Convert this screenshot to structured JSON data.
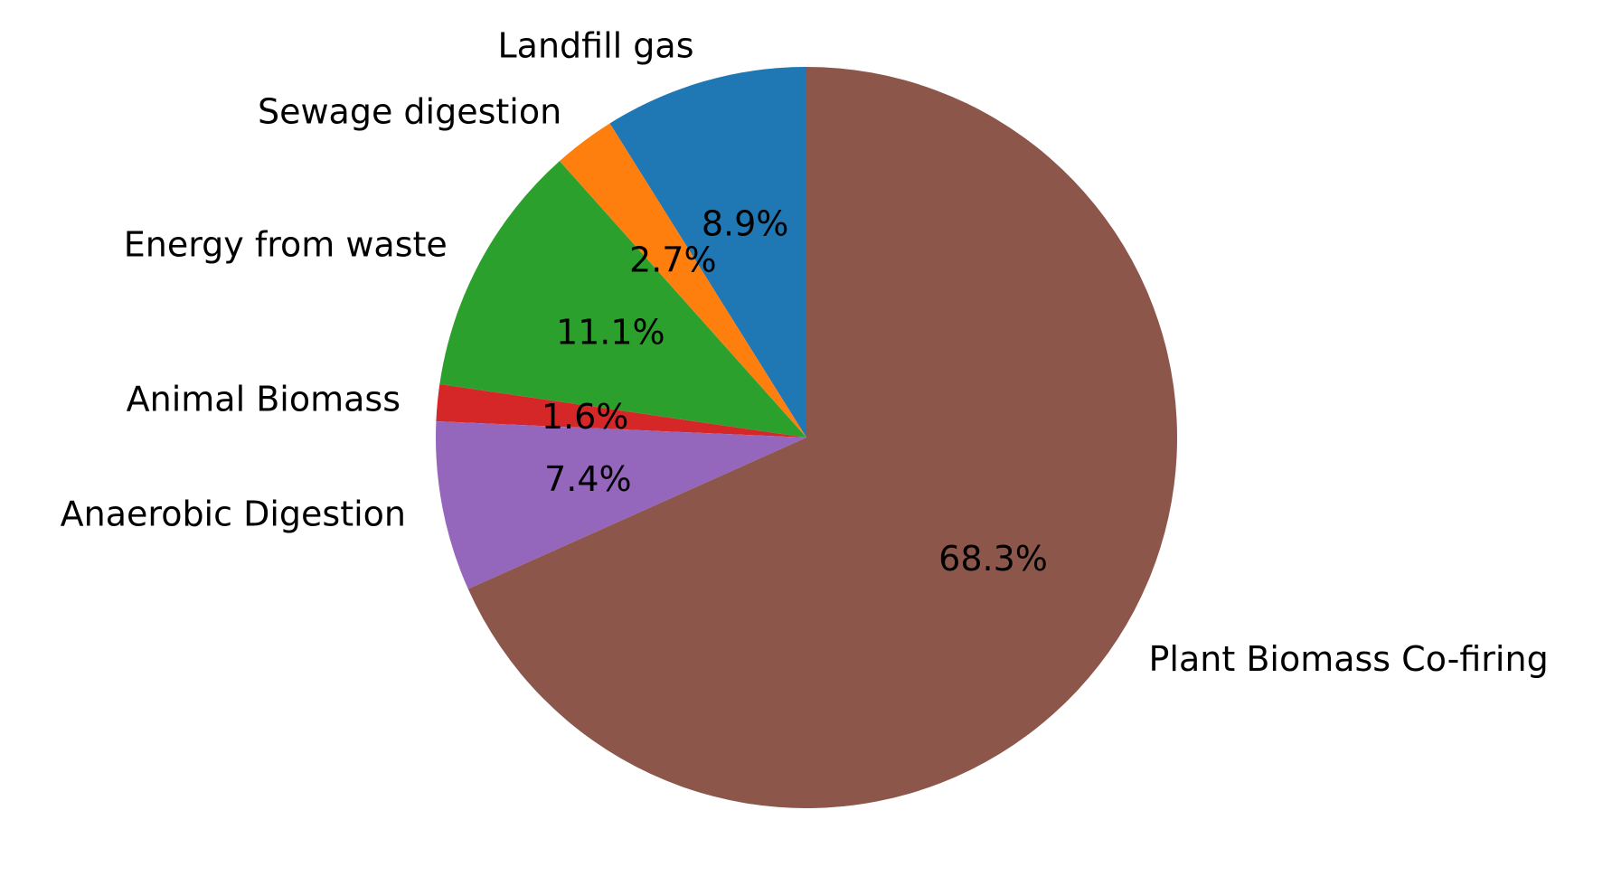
{
  "chart_data": {
    "type": "pie",
    "title": "",
    "start_angle_deg": 90,
    "direction": "counterclockwise",
    "slices": [
      {
        "label": "Landfill gas",
        "value": 8.9,
        "pct_text": "8.9%",
        "color": "#1f77b4"
      },
      {
        "label": "Sewage digestion",
        "value": 2.7,
        "pct_text": "2.7%",
        "color": "#ff7f0e"
      },
      {
        "label": "Energy from waste",
        "value": 11.1,
        "pct_text": "11.1%",
        "color": "#2ca02c"
      },
      {
        "label": "Animal Biomass",
        "value": 1.6,
        "pct_text": "1.6%",
        "color": "#d62728"
      },
      {
        "label": "Anaerobic Digestion",
        "value": 7.4,
        "pct_text": "7.4%",
        "color": "#9467bd"
      },
      {
        "label": "Plant Biomass Co-firing",
        "value": 68.3,
        "pct_text": "68.3%",
        "color": "#8c564b"
      }
    ]
  }
}
